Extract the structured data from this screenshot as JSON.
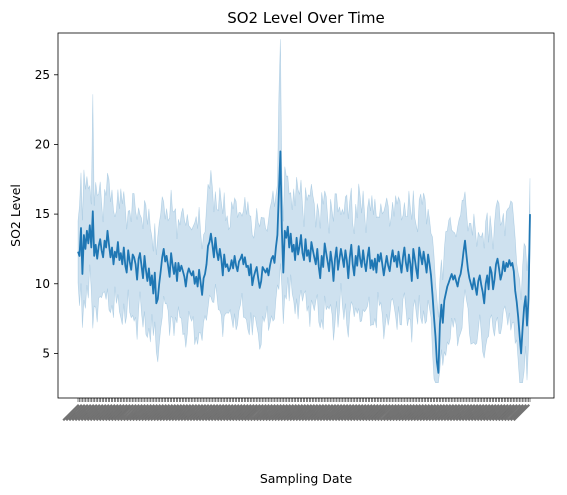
{
  "chart_data": {
    "type": "line",
    "title": "SO2 Level Over Time",
    "xlabel": "Sampling Date",
    "ylabel": "SO2 Level",
    "ylim": [
      1.8,
      28.0
    ],
    "yticks": [
      5,
      10,
      15,
      20,
      25
    ],
    "x_tick_count": 300,
    "x_tick_labels_legible": false,
    "grid": false,
    "legend": "none",
    "colors": {
      "line": "#1f77b4",
      "band": "#1f77b4",
      "axes": "#000000"
    },
    "series": [
      {
        "values": [
          12.3,
          12.0,
          14.0,
          10.7,
          13.5,
          12.5,
          13.8,
          12.9,
          14.2,
          12.6,
          15.2,
          12.0,
          12.8,
          11.8,
          12.7,
          13.2,
          12.4,
          11.9,
          13.1,
          12.6,
          13.8,
          12.8,
          11.9,
          12.6,
          11.4,
          12.3,
          11.9,
          13.0,
          11.7,
          12.2,
          11.4,
          12.6,
          11.3,
          10.8,
          12.4,
          11.6,
          11.0,
          12.1,
          11.9,
          11.4,
          10.3,
          11.8,
          12.2,
          11.3,
          10.4,
          12.0,
          11.0,
          10.2,
          11.1,
          9.9,
          10.6,
          9.3,
          10.8,
          8.6,
          8.9,
          10.0,
          10.9,
          11.9,
          12.5,
          11.6,
          12.0,
          11.3,
          10.5,
          12.2,
          11.4,
          10.7,
          11.5,
          10.2,
          11.5,
          10.9,
          11.3,
          10.9,
          10.5,
          9.8,
          10.7,
          11.1,
          10.8,
          10.6,
          10.9,
          10.0,
          10.5,
          9.8,
          11.0,
          10.1,
          9.2,
          10.4,
          10.7,
          11.4,
          12.7,
          13.0,
          13.6,
          12.8,
          11.9,
          13.3,
          12.3,
          11.7,
          12.5,
          11.8,
          10.6,
          12.1,
          11.2,
          11.4,
          10.9,
          11.1,
          11.7,
          11.1,
          12.0,
          11.3,
          10.9,
          11.6,
          11.8,
          12.1,
          11.4,
          11.9,
          11.2,
          11.3,
          10.6,
          11.4,
          9.9,
          10.5,
          10.9,
          11.2,
          10.4,
          9.7,
          10.2,
          11.2,
          11.0,
          10.8,
          11.1,
          10.6,
          11.3,
          11.8,
          12.0,
          11.5,
          12.6,
          13.5,
          16.6,
          19.5,
          14.0,
          10.8,
          13.8,
          13.3,
          14.1,
          12.6,
          13.6,
          12.3,
          12.8,
          11.7,
          13.3,
          12.1,
          12.7,
          13.5,
          12.2,
          11.7,
          13.2,
          12.0,
          12.4,
          11.6,
          13.0,
          12.4,
          11.9,
          11.4,
          12.5,
          11.2,
          10.4,
          12.0,
          11.2,
          12.9,
          12.2,
          11.6,
          10.9,
          12.3,
          11.5,
          10.2,
          11.8,
          12.6,
          11.0,
          11.8,
          12.5,
          11.9,
          11.2,
          12.4,
          11.7,
          10.4,
          11.9,
          12.8,
          11.4,
          10.6,
          12.0,
          11.3,
          12.7,
          11.8,
          11.2,
          12.4,
          11.5,
          10.9,
          11.9,
          12.6,
          11.1,
          11.7,
          11.0,
          11.8,
          10.8,
          12.1,
          11.6,
          12.2,
          11.4,
          10.6,
          11.3,
          12.0,
          11.3,
          10.9,
          11.8,
          12.4,
          11.6,
          12.0,
          11.2,
          12.3,
          11.5,
          10.8,
          11.9,
          12.6,
          11.5,
          10.9,
          12.1,
          11.4,
          10.2,
          12.5,
          11.8,
          11.0,
          10.4,
          12.6,
          12.0,
          11.4,
          12.3,
          11.6,
          10.8,
          12.1,
          11.4,
          10.6,
          9.2,
          7.6,
          6.2,
          4.4,
          3.6,
          7.1,
          8.5,
          7.2,
          8.8,
          9.3,
          9.8,
          10.1,
          10.4,
          10.7,
          10.3,
          10.6,
          10.2,
          9.8,
          10.4,
          10.7,
          11.4,
          12.3,
          13.1,
          12.0,
          11.0,
          10.4,
          10.0,
          9.6,
          10.4,
          9.8,
          9.2,
          10.2,
          10.6,
          9.9,
          9.4,
          8.6,
          10.0,
          10.6,
          9.6,
          11.2,
          10.8,
          9.6,
          10.3,
          11.4,
          11.8,
          11.1,
          10.3,
          10.7,
          11.6,
          10.9,
          11.5,
          11.2,
          11.7,
          11.3,
          11.5,
          10.9,
          9.5,
          8.7,
          7.6,
          6.2,
          5.0,
          6.8,
          8.3,
          9.1,
          7.0,
          8.9,
          15.0
        ]
      }
    ]
  }
}
